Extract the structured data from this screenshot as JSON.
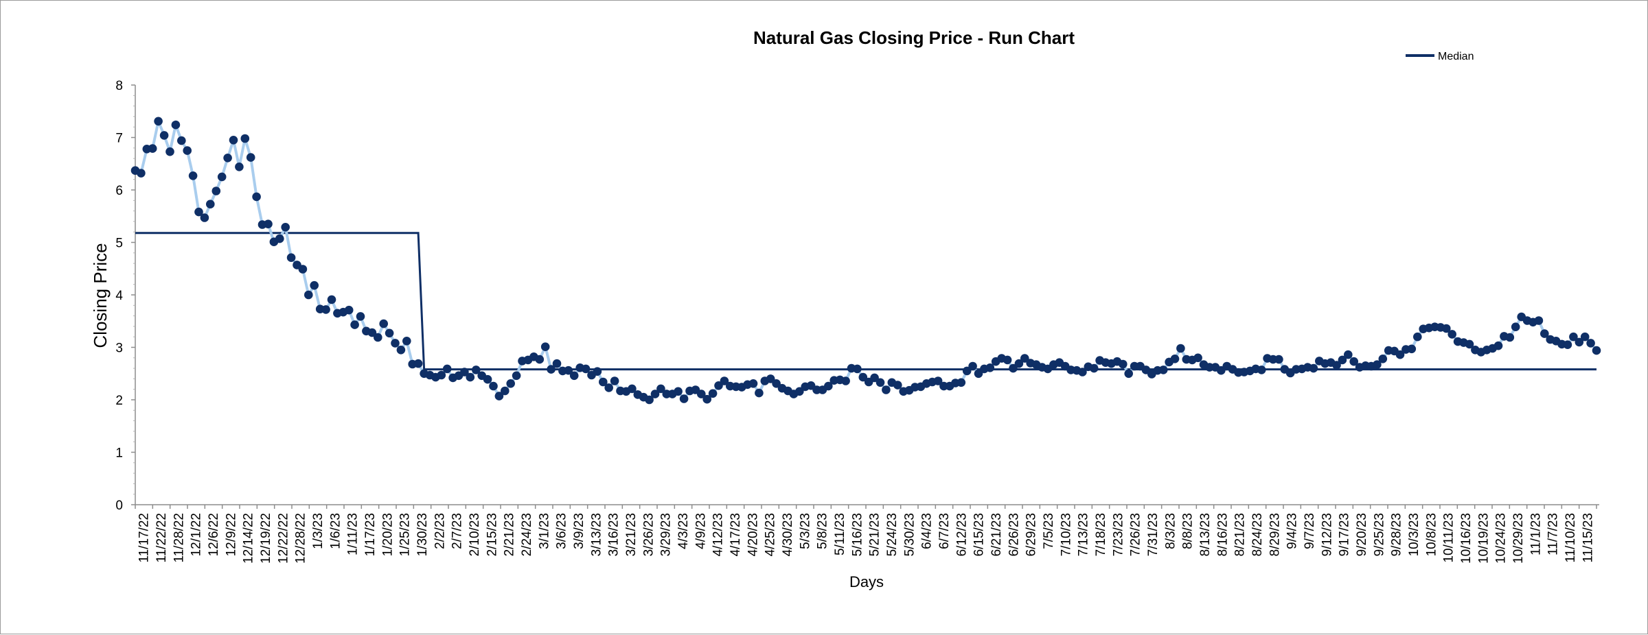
{
  "chart_data": {
    "type": "line",
    "title": "Natural Gas Closing Price - Run Chart",
    "xlabel": "Days",
    "ylabel": "Closing Price",
    "ylim": [
      0,
      8
    ],
    "yticks": [
      0,
      1,
      2,
      3,
      4,
      5,
      6,
      7,
      8
    ],
    "grid": false,
    "legend_position": "top-right",
    "colors": {
      "series_line": "#a9cdee",
      "series_marker": "#0f2f66",
      "median": "#0f2f66"
    },
    "x_tick_labels": [
      "11/17/22",
      "11/22/22",
      "11/28/22",
      "12/1/22",
      "12/6/22",
      "12/9/22",
      "12/14/22",
      "12/19/22",
      "12/22/22",
      "12/28/22",
      "1/3/23",
      "1/6/23",
      "1/11/23",
      "1/17/23",
      "1/20/23",
      "1/25/23",
      "1/30/23",
      "2/2/23",
      "2/7/23",
      "2/10/23",
      "2/15/23",
      "2/21/23",
      "2/24/23",
      "3/1/23",
      "3/6/23",
      "3/9/23",
      "3/13/23",
      "3/16/23",
      "3/21/23",
      "3/26/23",
      "3/29/23",
      "4/3/23",
      "4/9/23",
      "4/12/23",
      "4/17/23",
      "4/20/23",
      "4/25/23",
      "4/30/23",
      "5/3/23",
      "5/8/23",
      "5/11/23",
      "5/16/23",
      "5/21/23",
      "5/24/23",
      "5/30/23",
      "6/4/23",
      "6/7/23",
      "6/12/23",
      "6/15/23",
      "6/21/23",
      "6/26/23",
      "6/29/23",
      "7/5/23",
      "7/10/23",
      "7/13/23",
      "7/18/23",
      "7/23/23",
      "7/26/23",
      "7/31/23",
      "8/3/23",
      "8/8/23",
      "8/13/23",
      "8/16/23",
      "8/21/23",
      "8/24/23",
      "8/29/23",
      "9/4/23",
      "9/7/23",
      "9/12/23",
      "9/17/23",
      "9/20/23",
      "9/25/23",
      "9/28/23",
      "10/3/23",
      "10/8/23",
      "10/11/23",
      "10/16/23",
      "10/19/23",
      "10/24/23",
      "10/29/23",
      "11/1/23",
      "11/7/23",
      "11/10/23",
      "11/15/23"
    ],
    "series": [
      {
        "name": "",
        "values": [
          6.37,
          6.32,
          6.78,
          6.79,
          7.31,
          7.04,
          6.73,
          7.24,
          6.94,
          6.75,
          6.27,
          5.58,
          5.47,
          5.73,
          5.98,
          6.25,
          6.61,
          6.95,
          6.44,
          6.98,
          6.62,
          5.87,
          5.34,
          5.35,
          5.01,
          5.07,
          5.29,
          4.71,
          4.57,
          4.49,
          4.0,
          4.18,
          3.73,
          3.72,
          3.91,
          3.65,
          3.67,
          3.71,
          3.43,
          3.59,
          3.31,
          3.28,
          3.19,
          3.45,
          3.27,
          3.08,
          2.95,
          3.12,
          2.68,
          2.69,
          2.5,
          2.47,
          2.43,
          2.47,
          2.59,
          2.42,
          2.46,
          2.53,
          2.43,
          2.57,
          2.46,
          2.39,
          2.26,
          2.07,
          2.17,
          2.31,
          2.46,
          2.74,
          2.76,
          2.82,
          2.77,
          3.01,
          2.58,
          2.69,
          2.55,
          2.56,
          2.46,
          2.61,
          2.59,
          2.47,
          2.54,
          2.34,
          2.23,
          2.36,
          2.17,
          2.16,
          2.21,
          2.1,
          2.05,
          2.0,
          2.11,
          2.21,
          2.11,
          2.11,
          2.16,
          2.02,
          2.17,
          2.19,
          2.11,
          2.01,
          2.12,
          2.27,
          2.36,
          2.26,
          2.25,
          2.24,
          2.29,
          2.31,
          2.13,
          2.36,
          2.4,
          2.31,
          2.22,
          2.17,
          2.11,
          2.16,
          2.25,
          2.27,
          2.19,
          2.19,
          2.26,
          2.37,
          2.38,
          2.36,
          2.6,
          2.59,
          2.43,
          2.34,
          2.42,
          2.33,
          2.19,
          2.33,
          2.28,
          2.16,
          2.18,
          2.24,
          2.25,
          2.31,
          2.34,
          2.36,
          2.26,
          2.26,
          2.32,
          2.33,
          2.55,
          2.64,
          2.5,
          2.59,
          2.61,
          2.73,
          2.79,
          2.76,
          2.6,
          2.69,
          2.79,
          2.7,
          2.67,
          2.62,
          2.59,
          2.67,
          2.71,
          2.64,
          2.57,
          2.56,
          2.53,
          2.63,
          2.6,
          2.75,
          2.71,
          2.69,
          2.73,
          2.68,
          2.5,
          2.64,
          2.64,
          2.57,
          2.49,
          2.56,
          2.57,
          2.72,
          2.78,
          2.98,
          2.77,
          2.76,
          2.8,
          2.67,
          2.62,
          2.62,
          2.56,
          2.64,
          2.58,
          2.52,
          2.53,
          2.55,
          2.59,
          2.57,
          2.79,
          2.77,
          2.77,
          2.58,
          2.51,
          2.58,
          2.59,
          2.62,
          2.6,
          2.74,
          2.69,
          2.71,
          2.66,
          2.76,
          2.86,
          2.73,
          2.62,
          2.65,
          2.64,
          2.67,
          2.78,
          2.94,
          2.93,
          2.86,
          2.96,
          2.97,
          3.2,
          3.35,
          3.37,
          3.39,
          3.38,
          3.36,
          3.25,
          3.11,
          3.09,
          3.06,
          2.95,
          2.91,
          2.95,
          2.98,
          3.03,
          3.21,
          3.19,
          3.39,
          3.58,
          3.51,
          3.48,
          3.51,
          3.26,
          3.15,
          3.12,
          3.06,
          3.05,
          3.2,
          3.1,
          3.2,
          3.08,
          2.94
        ]
      },
      {
        "name": "Median",
        "segments": [
          {
            "from_index": 0,
            "to_index": 49,
            "value": 5.18
          },
          {
            "from_index": 50,
            "to_index": 259,
            "value": 2.58
          }
        ]
      }
    ]
  }
}
